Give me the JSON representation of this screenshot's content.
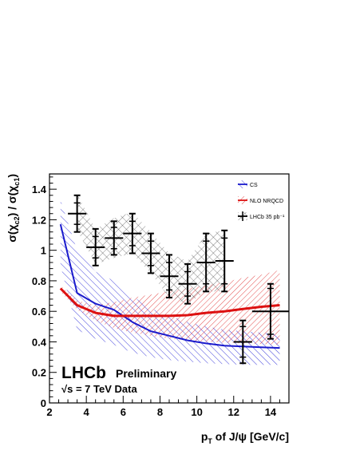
{
  "chart_data": {
    "type": "line",
    "xlabel": "p_T of J/ψ [GeV/c]",
    "ylabel": "σ(χ_c2) / σ(χ_c1)",
    "xlim": [
      2,
      15
    ],
    "ylim": [
      0,
      1.5
    ],
    "xticks": [
      "2",
      "4",
      "6",
      "8",
      "10",
      "12",
      "14"
    ],
    "yticks": [
      "0",
      "0.2",
      "0.4",
      "0.6",
      "0.8",
      "1",
      "1.2",
      "1.4"
    ],
    "annotations": {
      "brand": "LHCb",
      "status": "Preliminary",
      "energy": "√s = 7 TeV Data"
    },
    "legend": {
      "placement": "top-right",
      "entries": [
        "CS",
        "NLO NRQCD",
        "LHCb 35 pb⁻¹"
      ]
    },
    "series": [
      {
        "name": "CS",
        "color": "#1a1acc",
        "x": [
          2.6,
          3.5,
          4.5,
          5.5,
          6.5,
          7.5,
          8.5,
          9.5,
          10.5,
          11.5,
          12.5,
          13.5,
          14.5
        ],
        "y": [
          1.17,
          0.72,
          0.65,
          0.61,
          0.53,
          0.47,
          0.44,
          0.41,
          0.39,
          0.375,
          0.37,
          0.365,
          0.36
        ],
        "band_low": [
          0.9,
          0.48,
          0.42,
          0.38,
          0.33,
          0.3,
          0.28,
          0.27,
          0.26,
          0.255,
          0.25,
          0.25,
          0.25
        ],
        "band_high": [
          1.33,
          1.0,
          0.86,
          0.8,
          0.7,
          0.62,
          0.57,
          0.53,
          0.5,
          0.48,
          0.47,
          0.46,
          0.45
        ]
      },
      {
        "name": "NLO NRQCD",
        "color": "#dd1111",
        "x": [
          2.6,
          3.5,
          4.5,
          5.5,
          6.5,
          7.5,
          8.5,
          9.5,
          10.5,
          11.5,
          12.5,
          13.5,
          14.5
        ],
        "y": [
          0.75,
          0.64,
          0.59,
          0.57,
          0.57,
          0.57,
          0.57,
          0.575,
          0.59,
          0.6,
          0.615,
          0.63,
          0.64
        ],
        "band_low": [
          0.73,
          0.61,
          0.54,
          0.49,
          0.46,
          0.44,
          0.42,
          0.41,
          0.4,
          0.395,
          0.39,
          0.385,
          0.38
        ],
        "band_high": [
          0.77,
          0.67,
          0.64,
          0.66,
          0.69,
          0.71,
          0.73,
          0.75,
          0.77,
          0.79,
          0.82,
          0.84,
          0.87
        ]
      }
    ],
    "data_points": {
      "name": "LHCb 35 pb⁻¹",
      "x": [
        3.5,
        4.5,
        5.5,
        6.5,
        7.5,
        8.5,
        9.5,
        10.5,
        11.5,
        12.5,
        14.0
      ],
      "xerr": [
        0.5,
        0.5,
        0.5,
        0.5,
        0.5,
        0.5,
        0.5,
        0.5,
        0.5,
        0.5,
        1.0
      ],
      "y": [
        1.24,
        1.02,
        1.08,
        1.11,
        0.98,
        0.83,
        0.78,
        0.92,
        0.93,
        0.4,
        0.6
      ],
      "yerr_stat": [
        0.07,
        0.07,
        0.07,
        0.08,
        0.08,
        0.09,
        0.08,
        0.14,
        0.15,
        0.1,
        0.15
      ],
      "yerr_tot": [
        0.12,
        0.12,
        0.11,
        0.13,
        0.13,
        0.14,
        0.13,
        0.19,
        0.2,
        0.14,
        0.18
      ],
      "syst_band_low": [
        1.13,
        0.91,
        0.95,
        0.98,
        0.85,
        0.69,
        0.65,
        0.73,
        0.73,
        0.26,
        0.42
      ],
      "syst_band_high": [
        1.37,
        1.14,
        1.21,
        1.25,
        1.12,
        0.98,
        0.93,
        1.11,
        1.13,
        0.54,
        0.78
      ]
    }
  }
}
